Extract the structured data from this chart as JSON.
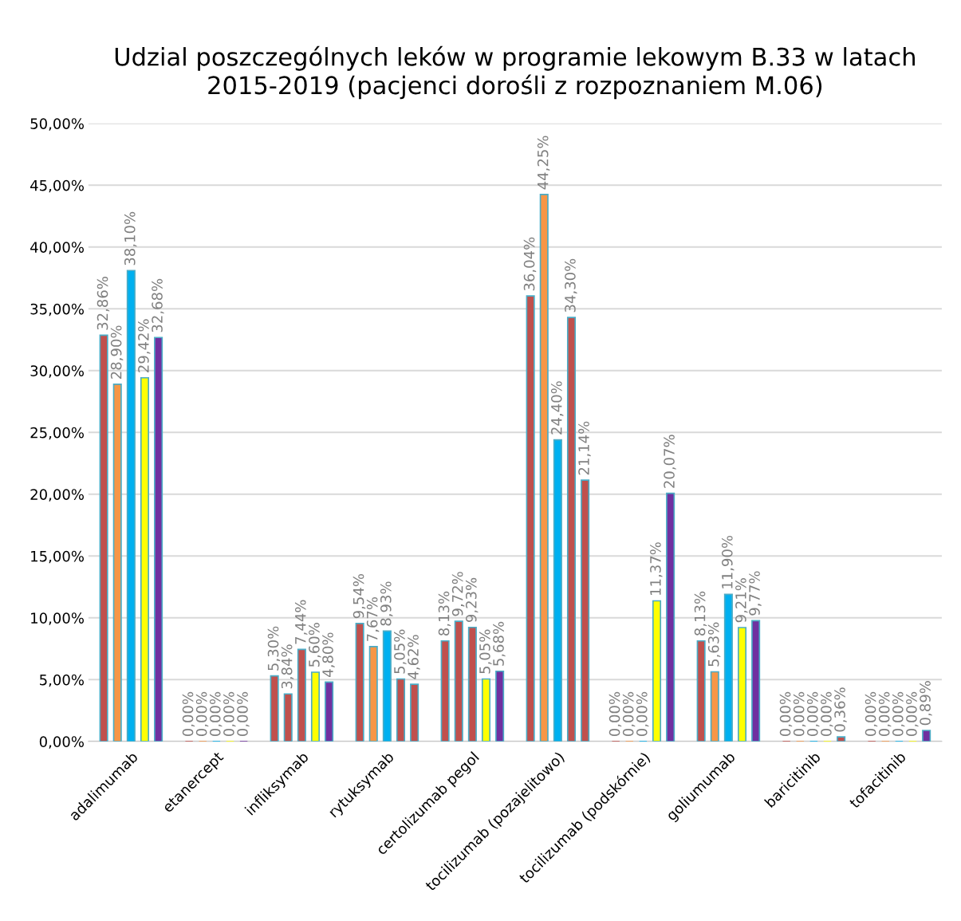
{
  "chart_data": {
    "type": "bar",
    "title": "Udzial poszczególnych leków w programie lekowym B.33 w latach 2015-2019 (pacjenci dorośli z rozpoznaniem M.06)",
    "categories": [
      "adalimumab",
      "etanercept",
      "infliksymab",
      "rytuksymab",
      "certolizumab pegol",
      "tocilizumab (pozajelitowo)",
      "tocilizumab (podskórnie)",
      "goliumumab",
      "baricitinib",
      "tofacitinib"
    ],
    "series": [
      {
        "values": [
          32.86,
          0,
          5.3,
          9.54,
          8.13,
          36.04,
          0,
          8.13,
          0,
          0
        ],
        "colors": [
          "#c0504d",
          "#c0504d",
          "#c0504d",
          "#c0504d",
          "#c0504d",
          "#c0504d",
          "#c0504d",
          "#c0504d",
          "#c0504d",
          "#c0504d"
        ],
        "value_labels": [
          "32,86%",
          "0,00%",
          "5,30%",
          "9,54%",
          "8,13%",
          "36,04%",
          "0,00%",
          "8,13%",
          "0,00%",
          "0,00%"
        ]
      },
      {
        "values": [
          28.9,
          0,
          3.84,
          7.67,
          9.72,
          44.25,
          0,
          5.63,
          0,
          0
        ],
        "colors": [
          "#f79646",
          "#f79646",
          "#c0504d",
          "#f79646",
          "#c0504d",
          "#f79646",
          "#f79646",
          "#f79646",
          "#f79646",
          "#f79646"
        ],
        "value_labels": [
          "28,90%",
          "0,00%",
          "3,84%",
          "7,67%",
          "9,72%",
          "44,25%",
          "0,00%",
          "5,63%",
          "0,00%",
          "0,00%"
        ]
      },
      {
        "values": [
          38.1,
          0,
          7.44,
          8.93,
          9.23,
          24.4,
          0,
          11.9,
          0,
          0
        ],
        "colors": [
          "#00b0f0",
          "#00b0f0",
          "#c0504d",
          "#00b0f0",
          "#c0504d",
          "#00b0f0",
          "#00b0f0",
          "#00b0f0",
          "#00b0f0",
          "#00b0f0"
        ],
        "value_labels": [
          "38,10%",
          "0,00%",
          "7,44%",
          "8,93%",
          "9,23%",
          "24,40%",
          "0,00%",
          "11,90%",
          "0,00%",
          "0,00%"
        ]
      },
      {
        "values": [
          29.42,
          0,
          5.6,
          5.05,
          5.05,
          34.3,
          11.37,
          9.21,
          0,
          0
        ],
        "colors": [
          "#ffff00",
          "#ffff00",
          "#ffff00",
          "#c0504d",
          "#ffff00",
          "#c0504d",
          "#ffff00",
          "#ffff00",
          "#ffff00",
          "#ffff00"
        ],
        "value_labels": [
          "29,42%",
          "0,00%",
          "5,60%",
          "5,05%",
          "5,05%",
          "34,30%",
          "11,37%",
          "9,21%",
          "0,00%",
          "0,00%"
        ]
      },
      {
        "values": [
          32.68,
          0,
          4.8,
          4.62,
          5.68,
          21.14,
          20.07,
          9.77,
          0.36,
          0.89
        ],
        "colors": [
          "#7030a0",
          "#7030a0",
          "#7030a0",
          "#c0504d",
          "#7030a0",
          "#c0504d",
          "#7030a0",
          "#7030a0",
          "#c0504d",
          "#7030a0"
        ],
        "value_labels": [
          "32,68%",
          "0,00%",
          "4,80%",
          "4,62%",
          "5,68%",
          "21,14%",
          "20,07%",
          "9,77%",
          "0,36%",
          "0,89%"
        ]
      }
    ],
    "ylim": [
      0,
      50
    ],
    "yticks": [
      {
        "value": 0,
        "label": "0,00%"
      },
      {
        "value": 5,
        "label": "5,00%"
      },
      {
        "value": 10,
        "label": "10,00%"
      },
      {
        "value": 15,
        "label": "15,00%"
      },
      {
        "value": 20,
        "label": "20,00%"
      },
      {
        "value": 25,
        "label": "25,00%"
      },
      {
        "value": 30,
        "label": "30,00%"
      },
      {
        "value": 35,
        "label": "35,00%"
      },
      {
        "value": 40,
        "label": "40,00%"
      },
      {
        "value": 45,
        "label": "45,00%"
      },
      {
        "value": 50,
        "label": "50,00%"
      }
    ],
    "grid": "y"
  }
}
